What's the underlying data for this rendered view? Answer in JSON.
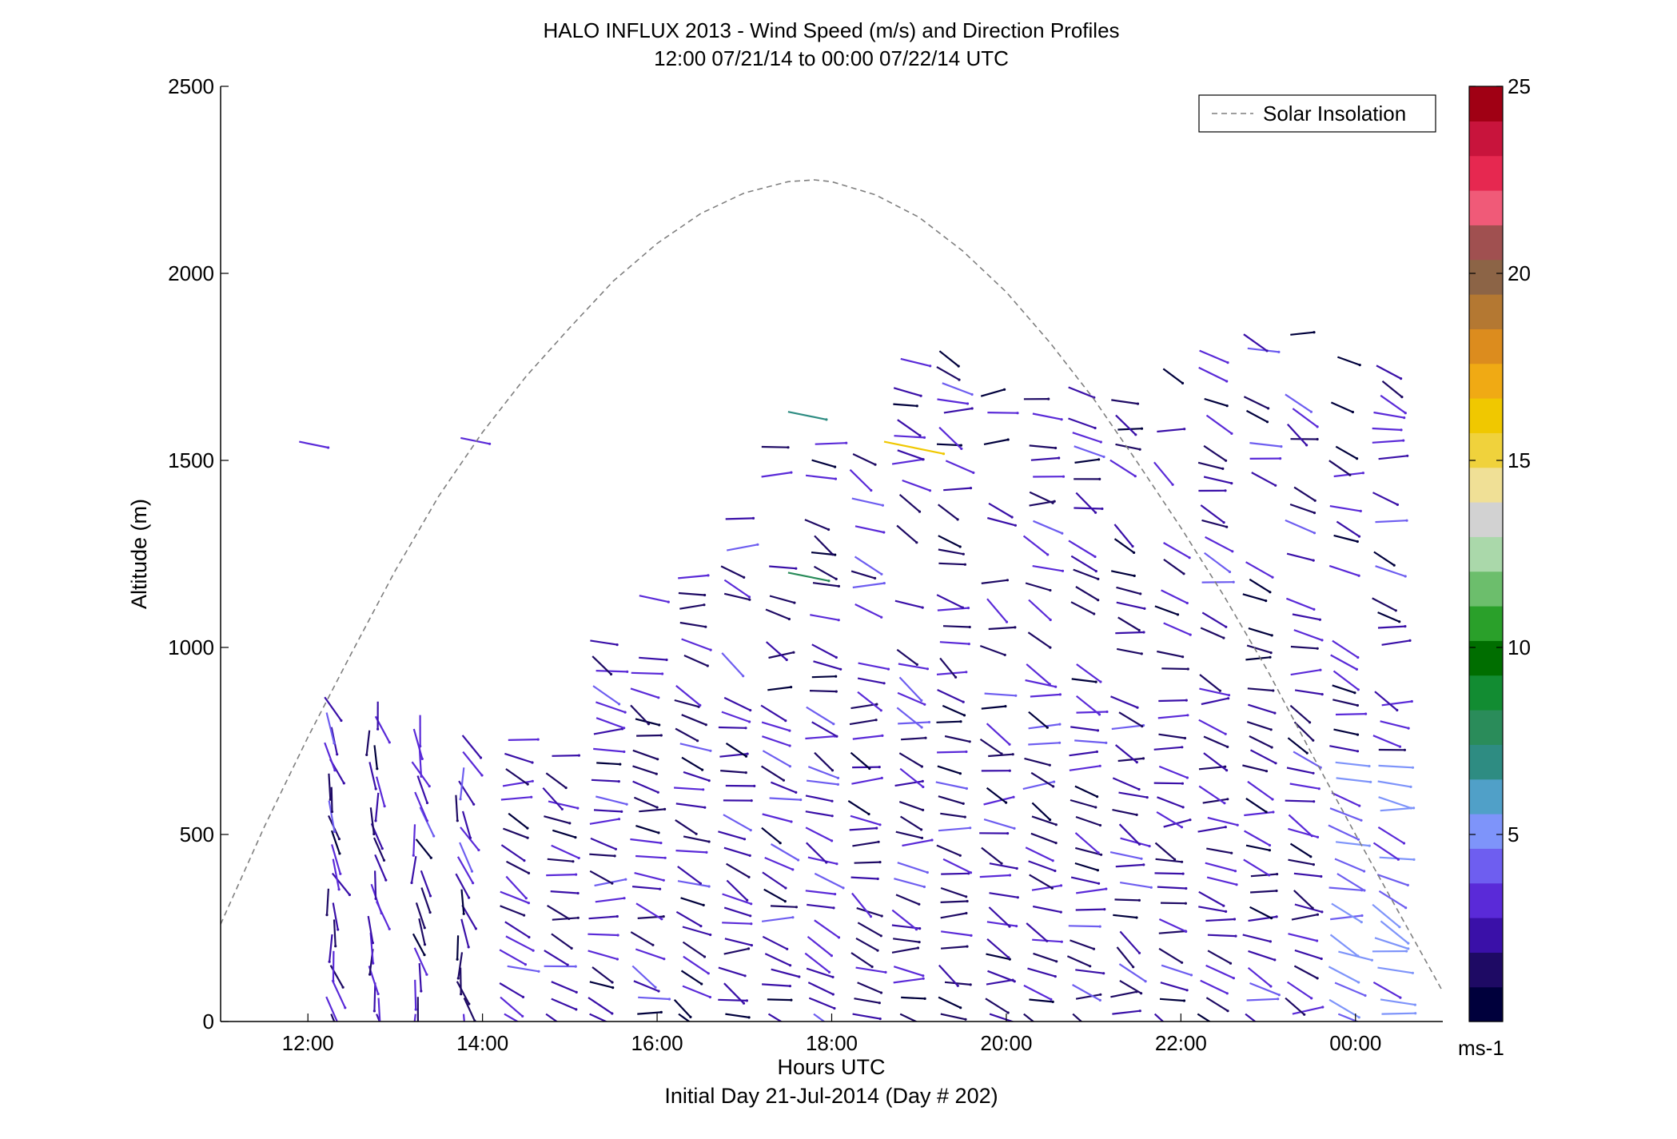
{
  "chart_data": {
    "type": "scatter",
    "title": "HALO INFLUX 2013 - Wind Speed (m/s) and Direction Profiles",
    "subtitle": "12:00 07/21/14 to 00:00 07/22/14  UTC",
    "xlabel": "Hours UTC",
    "xlabel2": "Initial Day 21-Jul-2014 (Day # 202)",
    "ylabel": "Altitude (m)",
    "xlim": [
      11.0,
      25.0
    ],
    "ylim": [
      0,
      2500
    ],
    "x_ticks": [
      {
        "value": 12,
        "label": "12:00"
      },
      {
        "value": 14,
        "label": "14:00"
      },
      {
        "value": 16,
        "label": "16:00"
      },
      {
        "value": 18,
        "label": "18:00"
      },
      {
        "value": 20,
        "label": "20:00"
      },
      {
        "value": 22,
        "label": "22:00"
      },
      {
        "value": 24,
        "label": "00:00"
      }
    ],
    "y_ticks": [
      {
        "value": 0,
        "label": "0"
      },
      {
        "value": 500,
        "label": "500"
      },
      {
        "value": 1000,
        "label": "1000"
      },
      {
        "value": 1500,
        "label": "1500"
      },
      {
        "value": 2000,
        "label": "2000"
      },
      {
        "value": 2500,
        "label": "2500"
      }
    ],
    "legend": {
      "label": "Solar Insolation",
      "position": "top-right",
      "style": "dashed",
      "color": "#7f7f7f"
    },
    "solar_insolation_curve": {
      "x": [
        11.0,
        11.5,
        12.0,
        12.5,
        13.0,
        13.5,
        14.0,
        14.5,
        15.0,
        15.5,
        16.0,
        16.5,
        17.0,
        17.5,
        17.8,
        18.0,
        18.5,
        19.0,
        19.5,
        20.0,
        20.5,
        21.0,
        21.5,
        22.0,
        22.5,
        23.0,
        23.5,
        24.0,
        24.5,
        25.0
      ],
      "y": [
        260,
        520,
        760,
        985,
        1205,
        1405,
        1575,
        1725,
        1855,
        1980,
        2080,
        2160,
        2215,
        2245,
        2250,
        2245,
        2210,
        2150,
        2060,
        1950,
        1815,
        1665,
        1495,
        1320,
        1135,
        935,
        715,
        500,
        290,
        80
      ]
    },
    "colorbar": {
      "label": "ms-1",
      "min": 0,
      "max": 25,
      "ticks": [
        5,
        10,
        15,
        20,
        25
      ],
      "colors": [
        "#00003c",
        "#1e0a64",
        "#3a10a8",
        "#5a2ad8",
        "#6e5ef0",
        "#7e94fa",
        "#50a0c8",
        "#2e8c82",
        "#2a8c5a",
        "#128c32",
        "#006e00",
        "#2aa02a",
        "#6cbe6c",
        "#aad8aa",
        "#d2d2d2",
        "#f0e096",
        "#f0d23c",
        "#f0c800",
        "#f0aa14",
        "#dc8c1e",
        "#b47832",
        "#8c6446",
        "#a05050",
        "#f05a78",
        "#e62850",
        "#c8143c",
        "#a00014"
      ]
    },
    "wind_profile_times": [
      12.25,
      12.75,
      13.25,
      13.75,
      14.25,
      14.75,
      15.25,
      15.75,
      16.25,
      16.75,
      17.25,
      17.75,
      18.25,
      18.75,
      19.25,
      19.75,
      20.25,
      20.75,
      21.25,
      21.75,
      22.25,
      22.75,
      23.25,
      23.75,
      24.25
    ],
    "wind_profile_max_alt_m": [
      880,
      880,
      820,
      800,
      780,
      740,
      1050,
      1180,
      1210,
      1380,
      1600,
      1550,
      1560,
      1800,
      1850,
      1720,
      1700,
      1750,
      1720,
      1750,
      1820,
      1840,
      1850,
      1780,
      1780
    ],
    "high_altitude_points": [
      {
        "time": 11.9,
        "alt_m": 1550,
        "speed_ms": 3
      },
      {
        "time": 13.75,
        "alt_m": 1560,
        "speed_ms": 3
      },
      {
        "time": 17.5,
        "alt_m": 1630,
        "speed_ms": 7
      },
      {
        "time": 17.5,
        "alt_m": 1200,
        "speed_ms": 8
      },
      {
        "time": 18.6,
        "alt_m": 1550,
        "speed_ms": 16
      }
    ]
  }
}
